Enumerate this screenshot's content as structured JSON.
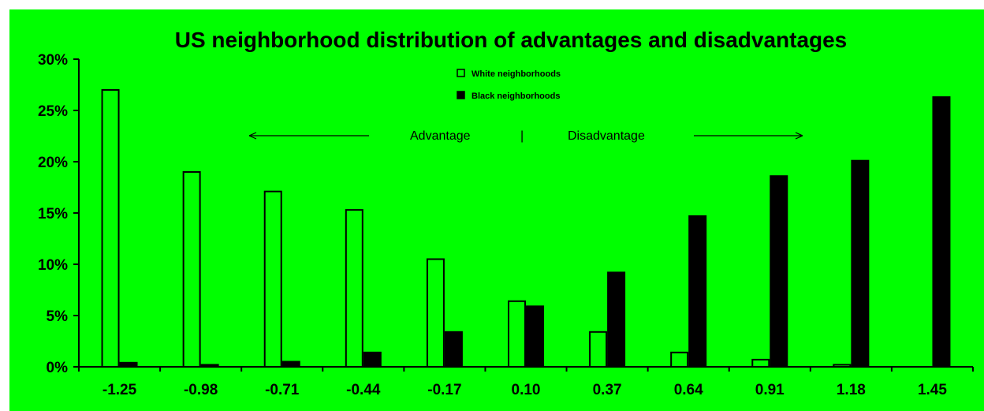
{
  "chart_data": {
    "type": "bar",
    "title": "US neighborhood distribution of advantages and disadvantages",
    "xlabel": "",
    "ylabel": "",
    "categories": [
      "-1.25",
      "-0.98",
      "-0.71",
      "-0.44",
      "-0.17",
      "0.10",
      "0.37",
      "0.64",
      "0.91",
      "1.18",
      "1.45"
    ],
    "series": [
      {
        "name": "White neighborhoods",
        "color": "#00ff00",
        "values": [
          27.0,
          19.0,
          17.1,
          15.3,
          10.5,
          6.4,
          3.4,
          1.4,
          0.7,
          0.2,
          0.0
        ]
      },
      {
        "name": "Black neighborhoods",
        "color": "#000000",
        "values": [
          0.4,
          0.2,
          0.5,
          1.4,
          3.4,
          5.9,
          9.2,
          14.7,
          18.6,
          20.1,
          26.3
        ]
      }
    ],
    "ylim": [
      0,
      30
    ],
    "yticks": [
      "0%",
      "5%",
      "10%",
      "15%",
      "20%",
      "25%",
      "30%"
    ],
    "grid": false,
    "legend_position": "top-center",
    "annotations": {
      "advantage": "Advantage",
      "divider": "|",
      "disadvantage": "Disadvantage"
    },
    "background_color": "#00ff00"
  }
}
